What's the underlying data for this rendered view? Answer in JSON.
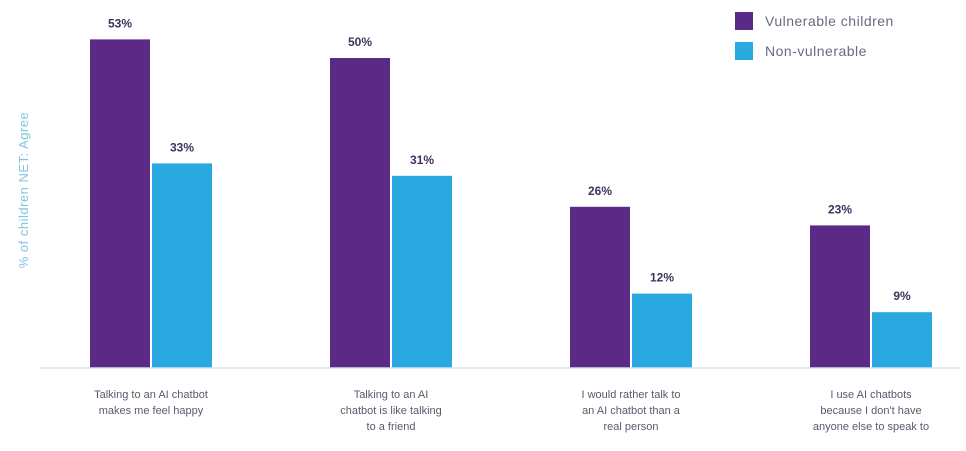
{
  "chart_data": {
    "type": "bar",
    "title": "",
    "xlabel": "",
    "ylabel": "% of children NET: Agree",
    "ylim": [
      0,
      56
    ],
    "grid": false,
    "legend_position": "top-right",
    "categories": [
      [
        "Talking to an AI chatbot",
        "makes me feel happy"
      ],
      [
        "Talking to an AI",
        "chatbot is like talking",
        "to a friend"
      ],
      [
        "I would rather talk to",
        "an AI chatbot than a",
        "real person"
      ],
      [
        "I use AI chatbots",
        "because I don't have",
        "anyone else to speak to"
      ]
    ],
    "series": [
      {
        "name": "Vulnerable children",
        "color": "#5b2a86",
        "values": [
          53,
          50,
          26,
          23
        ],
        "labels": [
          "53%",
          "50%",
          "26%",
          "23%"
        ]
      },
      {
        "name": "Non-vulnerable",
        "color": "#29a9e0",
        "values": [
          33,
          31,
          12,
          9
        ],
        "labels": [
          "33%",
          "31%",
          "12%",
          "9%"
        ]
      }
    ]
  }
}
